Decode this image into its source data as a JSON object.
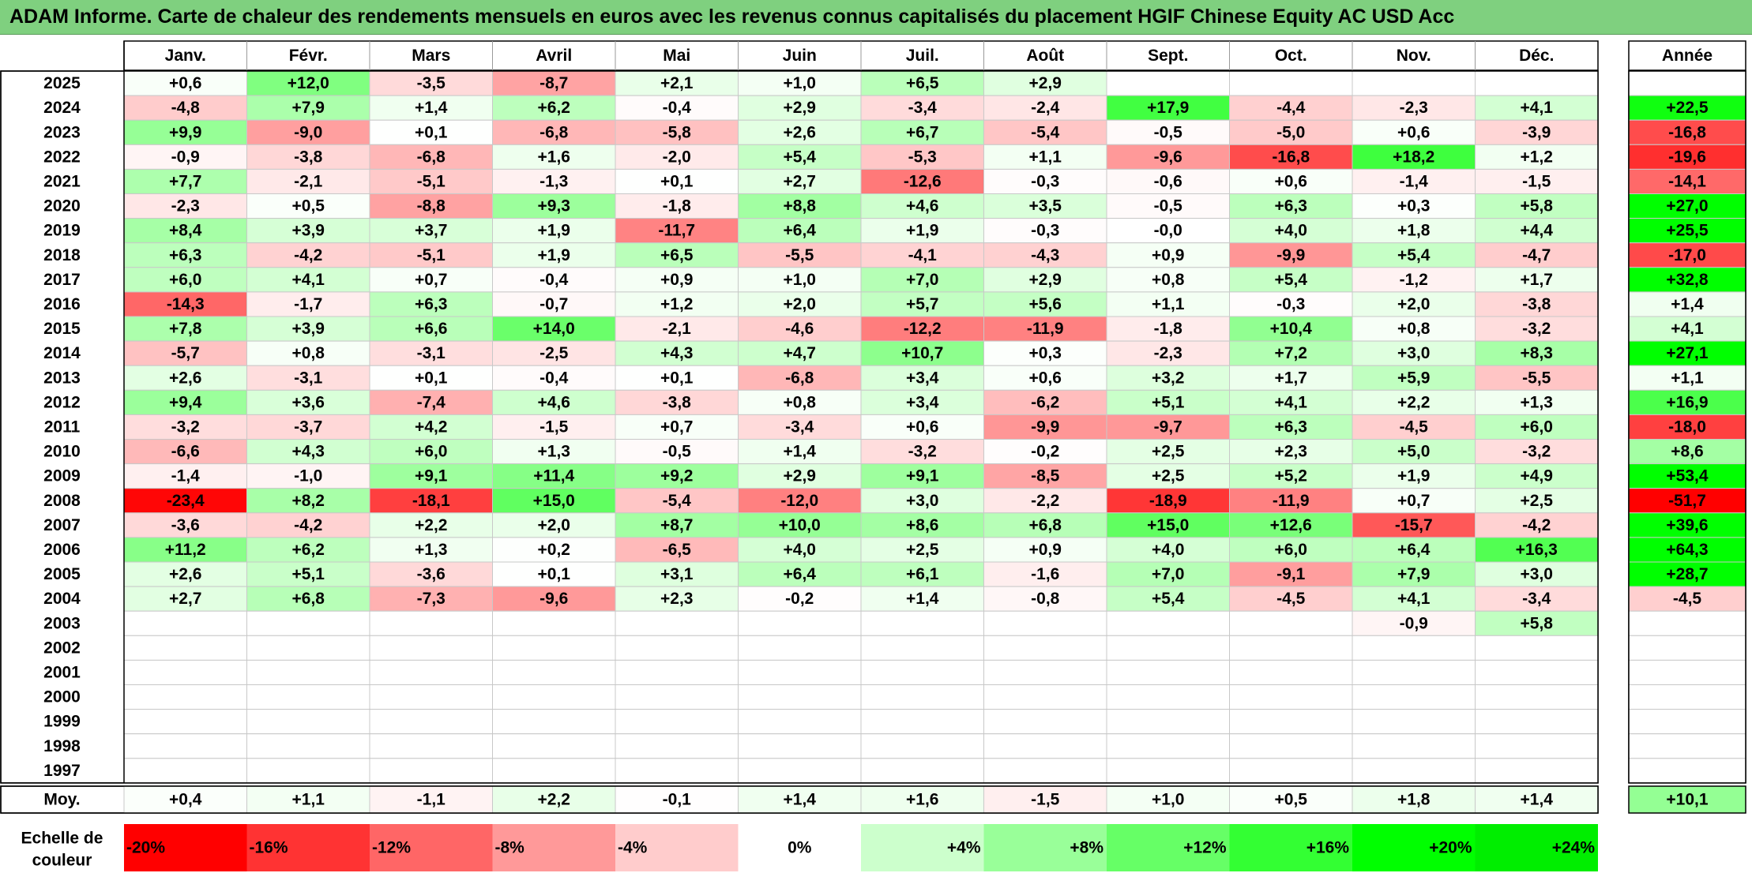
{
  "chart_data": {
    "type": "heatmap",
    "title": "ADAM Informe. Carte de chaleur des rendements mensuels en euros avec les revenus connus capitalisés du placement HGIF Chinese Equity AC USD Acc",
    "months": [
      "Janv.",
      "Févr.",
      "Mars",
      "Avril",
      "Mai",
      "Juin",
      "Juil.",
      "Août",
      "Sept.",
      "Oct.",
      "Nov.",
      "Déc."
    ],
    "year_header": "Année",
    "rows": [
      {
        "year": "2025",
        "values": [
          "+0,6",
          "+12,0",
          "-3,5",
          "-8,7",
          "+2,1",
          "+1,0",
          "+6,5",
          "+2,9",
          "",
          "",
          "",
          ""
        ],
        "annual": ""
      },
      {
        "year": "2024",
        "values": [
          "-4,8",
          "+7,9",
          "+1,4",
          "+6,2",
          "-0,4",
          "+2,9",
          "-3,4",
          "-2,4",
          "+17,9",
          "-4,4",
          "-2,3",
          "+4,1"
        ],
        "annual": "+22,5"
      },
      {
        "year": "2023",
        "values": [
          "+9,9",
          "-9,0",
          "+0,1",
          "-6,8",
          "-5,8",
          "+2,6",
          "+6,7",
          "-5,4",
          "-0,5",
          "-5,0",
          "+0,6",
          "-3,9"
        ],
        "annual": "-16,8"
      },
      {
        "year": "2022",
        "values": [
          "-0,9",
          "-3,8",
          "-6,8",
          "+1,6",
          "-2,0",
          "+5,4",
          "-5,3",
          "+1,1",
          "-9,6",
          "-16,8",
          "+18,2",
          "+1,2"
        ],
        "annual": "-19,6"
      },
      {
        "year": "2021",
        "values": [
          "+7,7",
          "-2,1",
          "-5,1",
          "-1,3",
          "+0,1",
          "+2,7",
          "-12,6",
          "-0,3",
          "-0,6",
          "+0,6",
          "-1,4",
          "-1,5"
        ],
        "annual": "-14,1"
      },
      {
        "year": "2020",
        "values": [
          "-2,3",
          "+0,5",
          "-8,8",
          "+9,3",
          "-1,8",
          "+8,8",
          "+4,6",
          "+3,5",
          "-0,5",
          "+6,3",
          "+0,3",
          "+5,8"
        ],
        "annual": "+27,0"
      },
      {
        "year": "2019",
        "values": [
          "+8,4",
          "+3,9",
          "+3,7",
          "+1,9",
          "-11,7",
          "+6,4",
          "+1,9",
          "-0,3",
          "-0,0",
          "+4,0",
          "+1,8",
          "+4,4"
        ],
        "annual": "+25,5"
      },
      {
        "year": "2018",
        "values": [
          "+6,3",
          "-4,2",
          "-5,1",
          "+1,9",
          "+6,5",
          "-5,5",
          "-4,1",
          "-4,3",
          "+0,9",
          "-9,9",
          "+5,4",
          "-4,7"
        ],
        "annual": "-17,0"
      },
      {
        "year": "2017",
        "values": [
          "+6,0",
          "+4,1",
          "+0,7",
          "-0,4",
          "+0,9",
          "+1,0",
          "+7,0",
          "+2,9",
          "+0,8",
          "+5,4",
          "-1,2",
          "+1,7"
        ],
        "annual": "+32,8"
      },
      {
        "year": "2016",
        "values": [
          "-14,3",
          "-1,7",
          "+6,3",
          "-0,7",
          "+1,2",
          "+2,0",
          "+5,7",
          "+5,6",
          "+1,1",
          "-0,3",
          "+2,0",
          "-3,8"
        ],
        "annual": "+1,4"
      },
      {
        "year": "2015",
        "values": [
          "+7,8",
          "+3,9",
          "+6,6",
          "+14,0",
          "-2,1",
          "-4,6",
          "-12,2",
          "-11,9",
          "-1,8",
          "+10,4",
          "+0,8",
          "-3,2"
        ],
        "annual": "+4,1"
      },
      {
        "year": "2014",
        "values": [
          "-5,7",
          "+0,8",
          "-3,1",
          "-2,5",
          "+4,3",
          "+4,7",
          "+10,7",
          "+0,3",
          "-2,3",
          "+7,2",
          "+3,0",
          "+8,3"
        ],
        "annual": "+27,1"
      },
      {
        "year": "2013",
        "values": [
          "+2,6",
          "-3,1",
          "+0,1",
          "-0,4",
          "+0,1",
          "-6,8",
          "+3,4",
          "+0,6",
          "+3,2",
          "+1,7",
          "+5,9",
          "-5,5"
        ],
        "annual": "+1,1"
      },
      {
        "year": "2012",
        "values": [
          "+9,4",
          "+3,6",
          "-7,4",
          "+4,6",
          "-3,8",
          "+0,8",
          "+3,4",
          "-6,2",
          "+5,1",
          "+4,1",
          "+2,2",
          "+1,3"
        ],
        "annual": "+16,9"
      },
      {
        "year": "2011",
        "values": [
          "-3,2",
          "-3,7",
          "+4,2",
          "-1,5",
          "+0,7",
          "-3,4",
          "+0,6",
          "-9,9",
          "-9,7",
          "+6,3",
          "-4,5",
          "+6,0"
        ],
        "annual": "-18,0"
      },
      {
        "year": "2010",
        "values": [
          "-6,6",
          "+4,3",
          "+6,0",
          "+1,3",
          "-0,5",
          "+1,4",
          "-3,2",
          "-0,2",
          "+2,5",
          "+2,3",
          "+5,0",
          "-3,2"
        ],
        "annual": "+8,6"
      },
      {
        "year": "2009",
        "values": [
          "-1,4",
          "-1,0",
          "+9,1",
          "+11,4",
          "+9,2",
          "+2,9",
          "+9,1",
          "-8,5",
          "+2,5",
          "+5,2",
          "+1,9",
          "+4,9"
        ],
        "annual": "+53,4"
      },
      {
        "year": "2008",
        "values": [
          "-23,4",
          "+8,2",
          "-18,1",
          "+15,0",
          "-5,4",
          "-12,0",
          "+3,0",
          "-2,2",
          "-18,9",
          "-11,9",
          "+0,7",
          "+2,5"
        ],
        "annual": "-51,7"
      },
      {
        "year": "2007",
        "values": [
          "-3,6",
          "-4,2",
          "+2,2",
          "+2,0",
          "+8,7",
          "+10,0",
          "+8,6",
          "+6,8",
          "+15,0",
          "+12,6",
          "-15,7",
          "-4,2"
        ],
        "annual": "+39,6"
      },
      {
        "year": "2006",
        "values": [
          "+11,2",
          "+6,2",
          "+1,3",
          "+0,2",
          "-6,5",
          "+4,0",
          "+2,5",
          "+0,9",
          "+4,0",
          "+6,0",
          "+6,4",
          "+16,3"
        ],
        "annual": "+64,3"
      },
      {
        "year": "2005",
        "values": [
          "+2,6",
          "+5,1",
          "-3,6",
          "+0,1",
          "+3,1",
          "+6,4",
          "+6,1",
          "-1,6",
          "+7,0",
          "-9,1",
          "+7,9",
          "+3,0"
        ],
        "annual": "+28,7"
      },
      {
        "year": "2004",
        "values": [
          "+2,7",
          "+6,8",
          "-7,3",
          "-9,6",
          "+2,3",
          "-0,2",
          "+1,4",
          "-0,8",
          "+5,4",
          "-4,5",
          "+4,1",
          "-3,4"
        ],
        "annual": "-4,5"
      },
      {
        "year": "2003",
        "values": [
          "",
          "",
          "",
          "",
          "",
          "",
          "",
          "",
          "",
          "",
          "-0,9",
          "+5,8"
        ],
        "annual": ""
      },
      {
        "year": "2002",
        "values": [
          "",
          "",
          "",
          "",
          "",
          "",
          "",
          "",
          "",
          "",
          "",
          ""
        ],
        "annual": ""
      },
      {
        "year": "2001",
        "values": [
          "",
          "",
          "",
          "",
          "",
          "",
          "",
          "",
          "",
          "",
          "",
          ""
        ],
        "annual": ""
      },
      {
        "year": "2000",
        "values": [
          "",
          "",
          "",
          "",
          "",
          "",
          "",
          "",
          "",
          "",
          "",
          ""
        ],
        "annual": ""
      },
      {
        "year": "1999",
        "values": [
          "",
          "",
          "",
          "",
          "",
          "",
          "",
          "",
          "",
          "",
          "",
          ""
        ],
        "annual": ""
      },
      {
        "year": "1998",
        "values": [
          "",
          "",
          "",
          "",
          "",
          "",
          "",
          "",
          "",
          "",
          "",
          ""
        ],
        "annual": ""
      },
      {
        "year": "1997",
        "values": [
          "",
          "",
          "",
          "",
          "",
          "",
          "",
          "",
          "",
          "",
          "",
          ""
        ],
        "annual": ""
      }
    ],
    "average": {
      "label": "Moy.",
      "values": [
        "+0,4",
        "+1,1",
        "-1,1",
        "+2,2",
        "-0,1",
        "+1,4",
        "+1,6",
        "-1,5",
        "+1,0",
        "+0,5",
        "+1,8",
        "+1,4"
      ],
      "annual": "+10,1"
    },
    "color_scale": {
      "label": "Echelle de couleur",
      "stops": [
        {
          "label": "-20%",
          "color": "#ff0000"
        },
        {
          "label": "-16%",
          "color": "#ff3333"
        },
        {
          "label": "-12%",
          "color": "#ff6666"
        },
        {
          "label": "-8%",
          "color": "#ff9999"
        },
        {
          "label": "-4%",
          "color": "#ffcccc"
        },
        {
          "label": "0%",
          "color": "#ffffff"
        },
        {
          "label": "+4%",
          "color": "#ccffcc"
        },
        {
          "label": "+8%",
          "color": "#99ff99"
        },
        {
          "label": "+12%",
          "color": "#66ff66"
        },
        {
          "label": "+16%",
          "color": "#33ff33"
        },
        {
          "label": "+20%",
          "color": "#00ff00"
        },
        {
          "label": "+24%",
          "color": "#00ee00"
        }
      ]
    }
  }
}
